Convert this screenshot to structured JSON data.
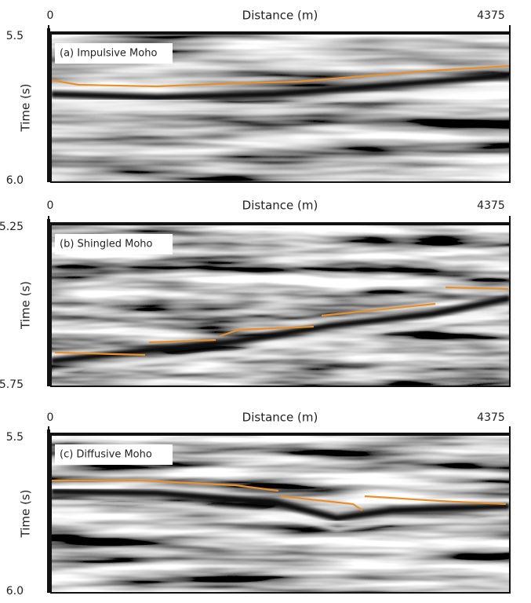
{
  "panels": [
    {
      "x_label": "Distance (m)",
      "x_start": "0",
      "x_end": "4375",
      "y_label": "Time (s)",
      "y_top": "5.5",
      "y_bottom": "6.0",
      "title": "(a) Impulsive Moho"
    },
    {
      "x_label": "Distance (m)",
      "x_start": "0",
      "x_end": "4375",
      "y_label": "Time (s)",
      "y_top": "5.25",
      "y_bottom": "5.75",
      "title": "(b) Shingled Moho"
    },
    {
      "x_label": "Distance (m)",
      "x_start": "0",
      "x_end": "4375",
      "y_label": "Time (s)",
      "y_top": "5.5",
      "y_bottom": "6.0",
      "title": "(c) Diffusive Moho"
    }
  ]
}
